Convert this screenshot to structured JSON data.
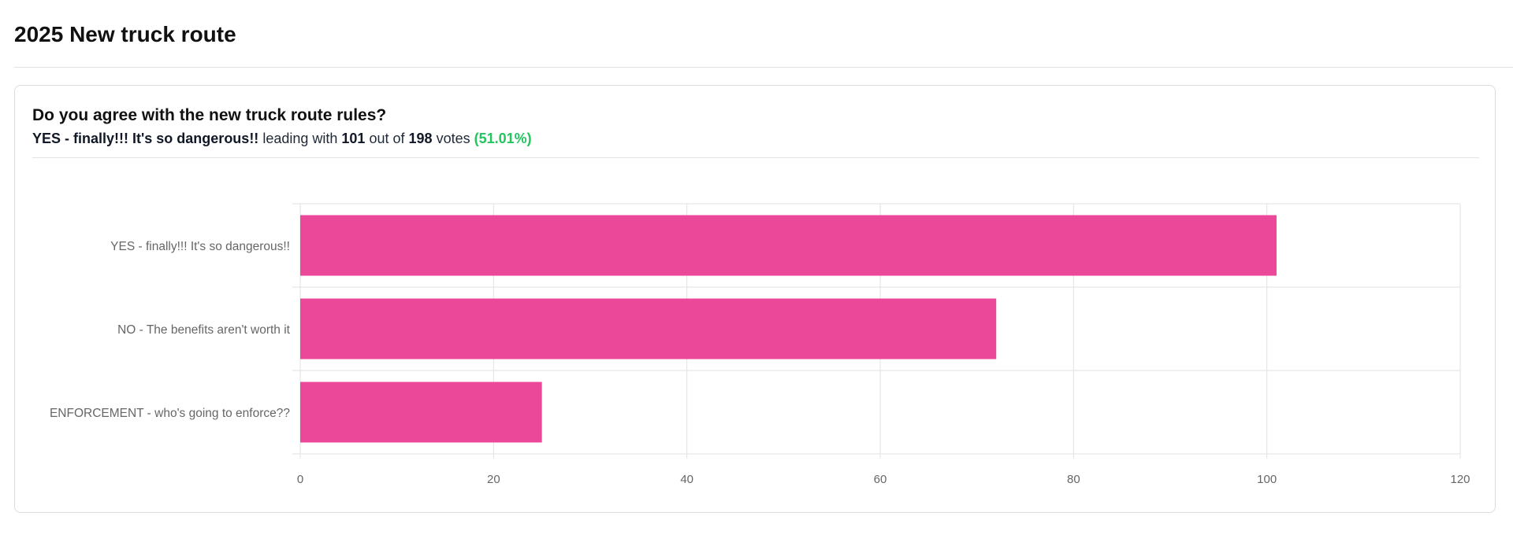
{
  "page": {
    "title": "2025 New truck route"
  },
  "poll": {
    "question": "Do you agree with the new truck route rules?",
    "summary": {
      "leader": "YES - finally!!! It's so dangerous!!",
      "text_leading_with": "leading with",
      "leader_votes": "101",
      "text_out_of": "out of",
      "total_votes": "198",
      "text_votes": "votes",
      "percent": "(51.01%)"
    }
  },
  "colors": {
    "bar": "#ec4899",
    "percent": "#22c55e",
    "grid": "#e2e2e2",
    "axis_text": "#666666"
  },
  "chart_data": {
    "type": "bar",
    "orientation": "horizontal",
    "categories": [
      "YES - finally!!! It's so dangerous!!",
      "NO - The benefits aren't worth it",
      "ENFORCEMENT - who's going to enforce??"
    ],
    "values": [
      101,
      72,
      25
    ],
    "xlim": [
      0,
      120
    ],
    "xticks": [
      0,
      20,
      40,
      60,
      80,
      100,
      120
    ],
    "grid": true,
    "legend": "none"
  }
}
